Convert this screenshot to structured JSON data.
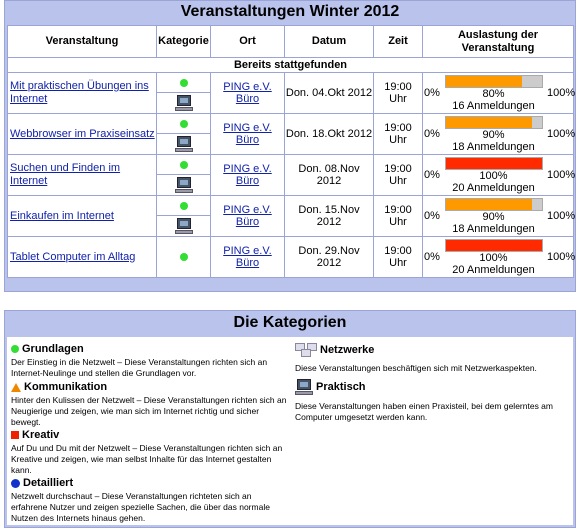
{
  "events": {
    "title": "Veranstaltungen Winter 2012",
    "headers": {
      "event": "Veranstaltung",
      "category": "Kategorie",
      "place": "Ort",
      "date": "Datum",
      "time": "Zeit",
      "load": "Auslastung der Veranstaltung"
    },
    "section_label": "Bereits stattgefunden",
    "load_min": "0%",
    "load_max": "100%",
    "rows": [
      {
        "name": "Mit praktischen Übungen ins Internet",
        "place": "PING e.V. Büro",
        "date": "Don. 04.Okt 2012",
        "time": "19:00 Uhr",
        "percent": 80,
        "percent_label": "80%",
        "registrations": "16 Anmeldungen",
        "bar_color": "#ff9900",
        "icons": [
          "green-dot",
          "computer"
        ]
      },
      {
        "name": "Webbrowser im Praxiseinsatz",
        "place": "PING e.V. Büro",
        "date": "Don. 18.Okt 2012",
        "time": "19:00 Uhr",
        "percent": 90,
        "percent_label": "90%",
        "registrations": "18 Anmeldungen",
        "bar_color": "#ff9900",
        "icons": [
          "green-dot",
          "computer"
        ]
      },
      {
        "name": "Suchen und Finden im Internet",
        "place": "PING e.V. Büro",
        "date": "Don. 08.Nov 2012",
        "time": "19:00 Uhr",
        "percent": 100,
        "percent_label": "100%",
        "registrations": "20 Anmeldungen",
        "bar_color": "#ff2a00",
        "icons": [
          "green-dot",
          "computer"
        ]
      },
      {
        "name": "Einkaufen im Internet",
        "place": "PING e.V. Büro",
        "date": "Don. 15.Nov 2012",
        "time": "19:00 Uhr",
        "percent": 90,
        "percent_label": "90%",
        "registrations": "18 Anmeldungen",
        "bar_color": "#ff9900",
        "icons": [
          "green-dot",
          "computer"
        ]
      },
      {
        "name": "Tablet Computer im Alltag",
        "place": "PING e.V. Büro",
        "date": "Don. 29.Nov 2012",
        "time": "19:00 Uhr",
        "percent": 100,
        "percent_label": "100%",
        "registrations": "20 Anmeldungen",
        "bar_color": "#ff2a00",
        "icons": [
          "green-dot"
        ]
      }
    ]
  },
  "categories": {
    "title": "Die Kategorien",
    "items": [
      {
        "key": "grundlagen",
        "name": "Grundlagen",
        "icon": "green-circle",
        "desc": "Der Einstieg in die Netzwelt – Diese Veranstaltungen richten sich an Internet-Neulinge und stellen die Grundlagen vor."
      },
      {
        "key": "kommunikation",
        "name": "Kommunikation",
        "icon": "orange-triangle",
        "desc": "Hinter den Kulissen der Netzwelt – Diese Veranstaltungen richten sich an Neugierige und zeigen, wie man sich im Internet richtig und sicher bewegt."
      },
      {
        "key": "kreativ",
        "name": "Kreativ",
        "icon": "red-square",
        "desc": "Auf Du und Du mit der Netzwelt – Diese Veranstaltungen richten sich an Kreative und zeigen, wie man selbst Inhalte für das Internet gestalten kann."
      },
      {
        "key": "detailliert",
        "name": "Detailliert",
        "icon": "blue-circle",
        "desc": "Netzwelt durchschaut – Diese Veranstaltungen richteten sich an erfahrene Nutzer und zeigen spezielle Sachen, die über das normale Nutzen des Internets hinaus gehen."
      },
      {
        "key": "netzwerke",
        "name": "Netzwerke",
        "icon": "network",
        "desc": "Diese Veranstaltungen beschäftigen sich mit Netzwerkaspekten."
      },
      {
        "key": "praktisch",
        "name": "Praktisch",
        "icon": "computer",
        "desc": "Diese Veranstaltungen haben einen Praxisteil, bei dem gelerntes am Computer umgesetzt werden kann."
      }
    ]
  }
}
